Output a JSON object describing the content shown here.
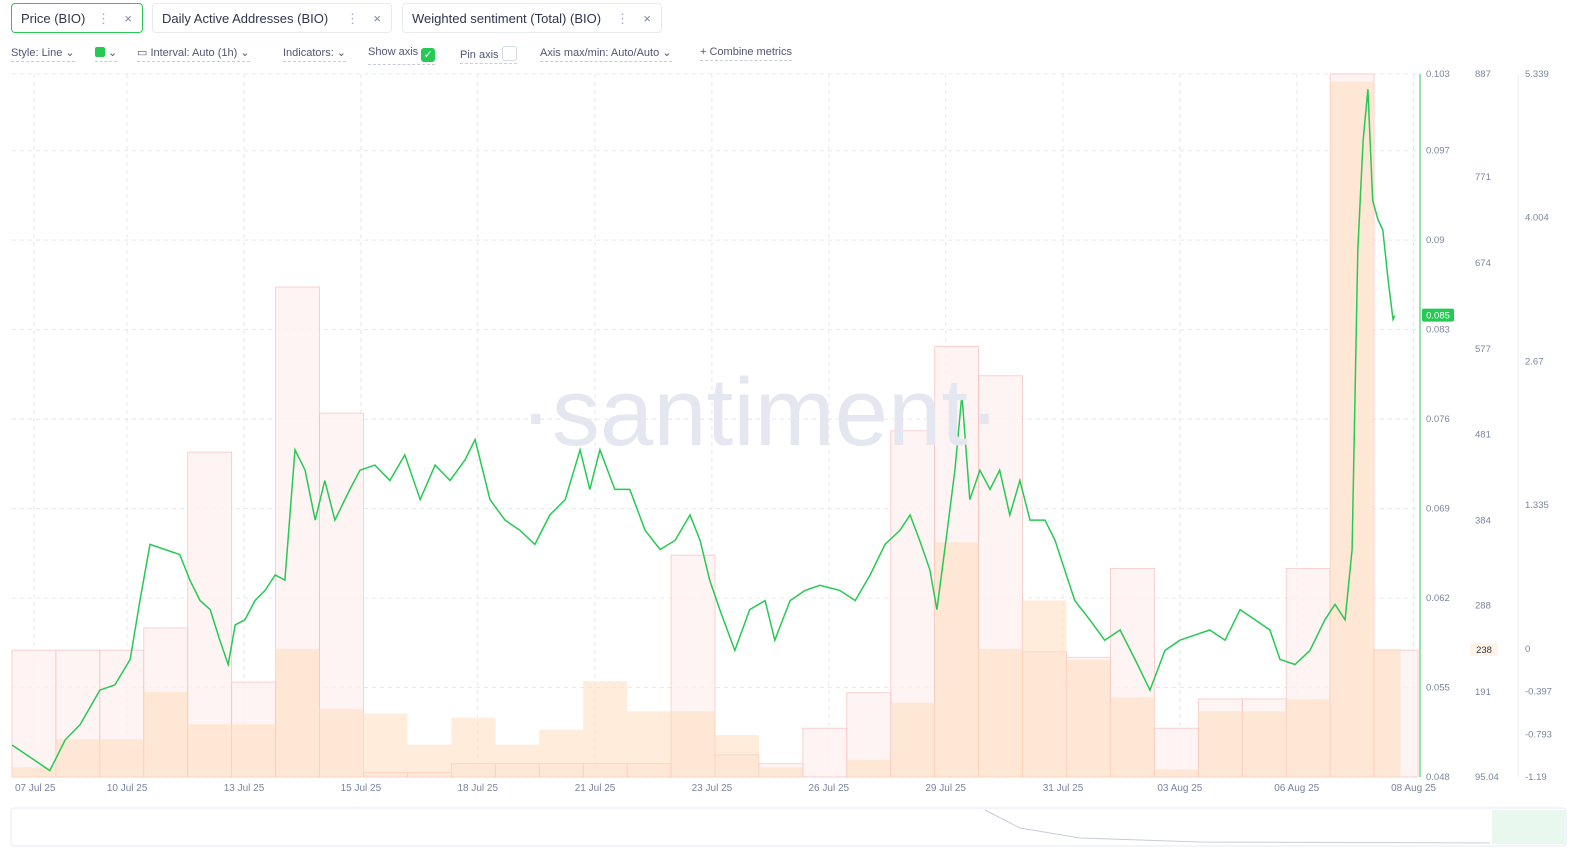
{
  "toolbar": {
    "style": "Style: Line",
    "interval": "Interval: Auto (1h)",
    "indicators": "Indicators:",
    "show_axis": "Show axis",
    "pin_axis": "Pin axis",
    "axis_minmax": "Axis max/min: Auto/Auto",
    "combine": "Combine metrics"
  },
  "chart_data": {
    "type": "line",
    "watermark": "·santiment·",
    "xlim": [
      0,
      32
    ],
    "xticks": [
      {
        "value": 0.5,
        "label": "07 Jul 25"
      },
      {
        "value": 2.62,
        "label": "10 Jul 25"
      },
      {
        "value": 5.28,
        "label": "13 Jul 25"
      },
      {
        "value": 7.94,
        "label": "15 Jul 25"
      },
      {
        "value": 10.6,
        "label": "18 Jul 25"
      },
      {
        "value": 13.27,
        "label": "21 Jul 25"
      },
      {
        "value": 15.93,
        "label": "23 Jul 25"
      },
      {
        "value": 18.59,
        "label": "26 Jul 25"
      },
      {
        "value": 21.25,
        "label": "29 Jul 25"
      },
      {
        "value": 23.92,
        "label": "31 Jul 25"
      },
      {
        "value": 26.58,
        "label": "03 Aug 25"
      },
      {
        "value": 29.24,
        "label": "06 Aug 25"
      },
      {
        "value": 31.9,
        "label": "08 Aug 25"
      }
    ],
    "ylim": [
      0.048,
      0.103
    ],
    "yticks": [
      0.048,
      0.055,
      0.062,
      0.069,
      0.076,
      0.083,
      0.09,
      0.097,
      0.103
    ],
    "y2lim": [
      95.04,
      887
    ],
    "y2ticks": [
      95.04,
      191,
      288,
      384,
      481,
      577,
      674,
      771,
      887
    ],
    "y3lim": [
      -1.19,
      5.339
    ],
    "y3ticks": [
      -1.19,
      -0.793,
      -0.397,
      0,
      1.335,
      2.67,
      4.004,
      5.339
    ],
    "grid": true,
    "price_badge": "0.085",
    "daa_badge": "238",
    "series": [
      {
        "name": "Price (BIO)",
        "color": "#26c953",
        "axis": "y",
        "kind": "line",
        "x": [
          0,
          0.52,
          0.86,
          1.21,
          1.55,
          2.0,
          2.34,
          2.69,
          2.91,
          3.14,
          3.48,
          3.82,
          4.05,
          4.28,
          4.51,
          4.73,
          4.92,
          5.08,
          5.3,
          5.53,
          5.76,
          5.99,
          6.21,
          6.44,
          6.67,
          6.9,
          7.12,
          7.35,
          7.69,
          7.92,
          8.26,
          8.6,
          8.94,
          9.29,
          9.63,
          9.97,
          10.31,
          10.54,
          10.88,
          11.22,
          11.56,
          11.9,
          12.24,
          12.59,
          12.93,
          13.15,
          13.38,
          13.72,
          14.06,
          14.41,
          14.75,
          15.09,
          15.43,
          15.66,
          15.88,
          16.11,
          16.45,
          16.79,
          17.14,
          17.36,
          17.71,
          18.05,
          18.39,
          18.84,
          19.19,
          19.53,
          19.87,
          20.21,
          20.44,
          20.66,
          20.89,
          21.05,
          21.23,
          21.46,
          21.62,
          21.8,
          22.03,
          22.26,
          22.48,
          22.71,
          22.94,
          23.17,
          23.51,
          23.74,
          23.96,
          24.19,
          24.53,
          24.87,
          25.22,
          25.56,
          25.9,
          26.24,
          26.58,
          26.92,
          27.26,
          27.61,
          27.95,
          28.29,
          28.63,
          28.86,
          29.2,
          29.54,
          29.88,
          30.11,
          30.34,
          30.5,
          30.63,
          30.75,
          30.86,
          30.97,
          31.09,
          31.2,
          31.32,
          31.43,
          31.47
        ],
        "values": [
          0.0505,
          0.0493,
          0.0485,
          0.0509,
          0.0521,
          0.0548,
          0.0552,
          0.0572,
          0.0618,
          0.0662,
          0.0658,
          0.0654,
          0.0634,
          0.0618,
          0.0611,
          0.0587,
          0.0568,
          0.0599,
          0.0603,
          0.0618,
          0.0626,
          0.0638,
          0.0634,
          0.0736,
          0.072,
          0.0681,
          0.0712,
          0.0681,
          0.0705,
          0.072,
          0.0724,
          0.0712,
          0.0732,
          0.0697,
          0.0724,
          0.0712,
          0.0728,
          0.0744,
          0.0697,
          0.0681,
          0.0673,
          0.0662,
          0.0685,
          0.0697,
          0.0736,
          0.0705,
          0.0736,
          0.0705,
          0.0705,
          0.0673,
          0.0658,
          0.0665,
          0.0685,
          0.0665,
          0.0634,
          0.0611,
          0.0579,
          0.0611,
          0.0618,
          0.0587,
          0.0618,
          0.0626,
          0.063,
          0.0626,
          0.0618,
          0.0638,
          0.0662,
          0.0673,
          0.0685,
          0.0665,
          0.0642,
          0.0611,
          0.0658,
          0.072,
          0.0779,
          0.0697,
          0.072,
          0.0705,
          0.072,
          0.0685,
          0.0712,
          0.0681,
          0.0681,
          0.0665,
          0.0642,
          0.0618,
          0.0603,
          0.0587,
          0.0595,
          0.0572,
          0.0548,
          0.0579,
          0.0587,
          0.0591,
          0.0595,
          0.0587,
          0.0611,
          0.0603,
          0.0595,
          0.0572,
          0.0568,
          0.0579,
          0.0603,
          0.0615,
          0.0603,
          0.0658,
          0.0892,
          0.0978,
          0.1018,
          0.0931,
          0.0916,
          0.0908,
          0.0869,
          0.0838,
          0.0841
        ]
      },
      {
        "name": "Daily Active Addresses (BIO)",
        "color": "#f6b9b9",
        "axis": "y2",
        "kind": "step",
        "x": [
          0,
          1,
          2,
          3,
          4,
          5,
          6,
          7,
          8,
          9,
          10,
          11,
          12,
          13,
          14,
          15,
          16,
          17,
          18,
          19,
          20,
          21,
          22,
          23,
          24,
          25,
          26,
          27,
          28,
          29,
          30,
          31
        ],
        "values": [
          238,
          238,
          238,
          263,
          461,
          202,
          647,
          505,
          100,
          100,
          110,
          110,
          110,
          110,
          110,
          345,
          120,
          110,
          150,
          190,
          485,
          580,
          547,
          236,
          230,
          330,
          150,
          183,
          183,
          330,
          887,
          238
        ]
      },
      {
        "name": "Weighted sentiment (Total) (BIO)",
        "color": "#ffdcbc",
        "axis": "y3",
        "kind": "bar",
        "x": [
          0,
          1,
          2,
          3,
          4,
          5,
          6,
          7,
          8,
          9,
          10,
          11,
          12,
          13,
          14,
          15,
          16,
          17,
          18,
          19,
          20,
          21,
          22,
          23,
          24,
          25,
          26,
          27,
          28,
          29,
          30,
          31
        ],
        "values": [
          -1.1,
          -0.84,
          -0.84,
          -0.4,
          -0.7,
          -0.7,
          0,
          -0.56,
          -0.6,
          -0.89,
          -0.64,
          -0.89,
          -0.75,
          -0.3,
          -0.58,
          -0.58,
          -0.8,
          -1.1,
          -1.19,
          -1.03,
          -0.5,
          0.99,
          0,
          0.45,
          -0.1,
          -0.45,
          -1.12,
          -0.58,
          -0.58,
          -0.47,
          5.27,
          0
        ]
      }
    ]
  }
}
